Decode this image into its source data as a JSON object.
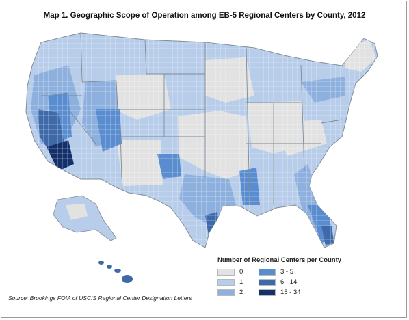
{
  "title": "Map 1. Geographic Scope of Operation among EB-5 Regional Centers by County, 2012",
  "legend": {
    "title": "Number of Regional Centers per County",
    "items": [
      {
        "label": "0",
        "color": "#e2e2e2"
      },
      {
        "label": "1",
        "color": "#b7cdea"
      },
      {
        "label": "2",
        "color": "#8eb0de"
      },
      {
        "label": "3 - 5",
        "color": "#5a8cd0"
      },
      {
        "label": "6 - 14",
        "color": "#3e6aa9"
      },
      {
        "label": "15 - 34",
        "color": "#14306b"
      }
    ]
  },
  "source": "Source: Brookings FOIA of USCIS Regional Center Designation Letters",
  "colors": {
    "county_border": "#ffffff",
    "state_border": "#7f8a96"
  }
}
